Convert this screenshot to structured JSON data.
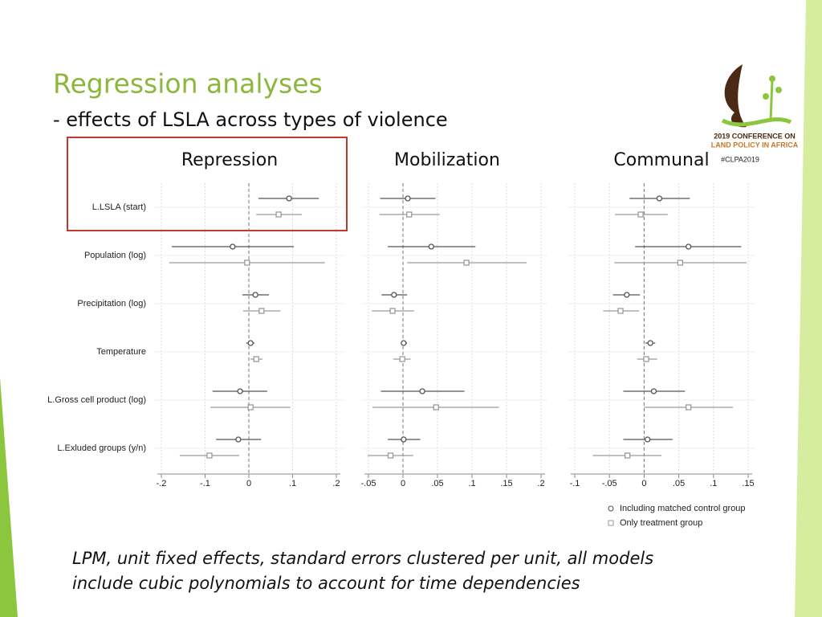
{
  "slide": {
    "title": "Regression analyses",
    "subtitle": "- effects of LSLA across types of violence",
    "logo": [
      "2019 CONFERENCE ON",
      "LAND POLICY IN AFRICA"
    ],
    "hashtag": "#CLPA2019",
    "footnote": [
      "LPM, unit fixed effects, standard errors clustered per unit, all models",
      "include cubic polynomials to account for time dependencies"
    ]
  },
  "chart_data": [
    {
      "type": "coefplot",
      "title": "Repression",
      "categories": [
        "L.LSLA (start)",
        "Population (log)",
        "Precipitation (log)",
        "Temperature",
        "L.Gross cell product (log)",
        "L.Exluded groups (y/n)"
      ],
      "xlim": [
        -0.2,
        0.2
      ],
      "xticks": [
        {
          "value": -0.2,
          "label": "-.2"
        },
        {
          "value": -0.1,
          "label": "-.1"
        },
        0,
        {
          "value": 0.1,
          "label": ".1"
        },
        {
          "value": 0.2,
          "label": ".2"
        }
      ],
      "grid": true,
      "legend": "bottom-right",
      "series": [
        {
          "name": "Including matched control group",
          "color": "#555555",
          "marker": "circle",
          "values": [
            0.092,
            -0.037,
            0.015,
            0.004,
            -0.02,
            -0.024
          ],
          "lower": [
            0.022,
            -0.176,
            -0.015,
            -0.006,
            -0.083,
            -0.075
          ],
          "upper": [
            0.16,
            0.103,
            0.046,
            0.013,
            0.042,
            0.028
          ]
        },
        {
          "name": "Only treatment group",
          "color": "#9a9a9a",
          "marker": "square",
          "values": [
            0.068,
            -0.004,
            0.029,
            0.017,
            0.004,
            -0.09
          ],
          "lower": [
            0.017,
            -0.182,
            -0.013,
            0.004,
            -0.088,
            -0.158
          ],
          "upper": [
            0.121,
            0.174,
            0.072,
            0.031,
            0.095,
            -0.022
          ]
        }
      ]
    },
    {
      "type": "coefplot",
      "title": "Mobilization",
      "xlim": [
        -0.05,
        0.2
      ],
      "xticks": [
        {
          "value": -0.05,
          "label": "-.05"
        },
        0,
        {
          "value": 0.05,
          "label": ".05"
        },
        {
          "value": 0.1,
          "label": ".1"
        },
        {
          "value": 0.15,
          "label": ".15"
        },
        {
          "value": 0.2,
          "label": ".2"
        }
      ],
      "grid": true,
      "series": [
        {
          "color": "#555555",
          "marker": "circle",
          "values": [
            0.007,
            0.041,
            -0.013,
            0.001,
            0.028,
            0.001
          ],
          "lower": [
            -0.033,
            -0.022,
            -0.031,
            -0.003,
            -0.032,
            -0.022
          ],
          "upper": [
            0.047,
            0.105,
            0.006,
            0.006,
            0.089,
            0.025
          ]
        },
        {
          "color": "#9a9a9a",
          "marker": "square",
          "values": [
            0.009,
            0.092,
            -0.015,
            -0.001,
            0.048,
            -0.018
          ],
          "lower": [
            -0.034,
            0.006,
            -0.045,
            -0.014,
            -0.044,
            -0.051
          ],
          "upper": [
            0.053,
            0.179,
            0.016,
            0.011,
            0.139,
            0.015
          ]
        }
      ]
    },
    {
      "type": "coefplot",
      "title": "Communal",
      "xlim": [
        -0.1,
        0.15
      ],
      "xticks": [
        {
          "value": -0.1,
          "label": "-.1"
        },
        {
          "value": -0.05,
          "label": "-.05"
        },
        0,
        {
          "value": 0.05,
          "label": ".05"
        },
        {
          "value": 0.1,
          "label": ".1"
        },
        {
          "value": 0.15,
          "label": ".15"
        }
      ],
      "grid": true,
      "series": [
        {
          "color": "#555555",
          "marker": "circle",
          "values": [
            0.022,
            0.064,
            -0.025,
            0.009,
            0.014,
            0.005
          ],
          "lower": [
            -0.021,
            -0.013,
            -0.045,
            0.002,
            -0.03,
            -0.03
          ],
          "upper": [
            0.066,
            0.14,
            -0.006,
            0.016,
            0.059,
            0.041
          ]
        },
        {
          "color": "#9a9a9a",
          "marker": "square",
          "values": [
            -0.005,
            0.052,
            -0.034,
            0.003,
            0.064,
            -0.024
          ],
          "lower": [
            -0.042,
            -0.043,
            -0.059,
            -0.01,
            0,
            -0.074
          ],
          "upper": [
            0.034,
            0.148,
            -0.007,
            0.019,
            0.128,
            0.025
          ]
        }
      ]
    }
  ]
}
